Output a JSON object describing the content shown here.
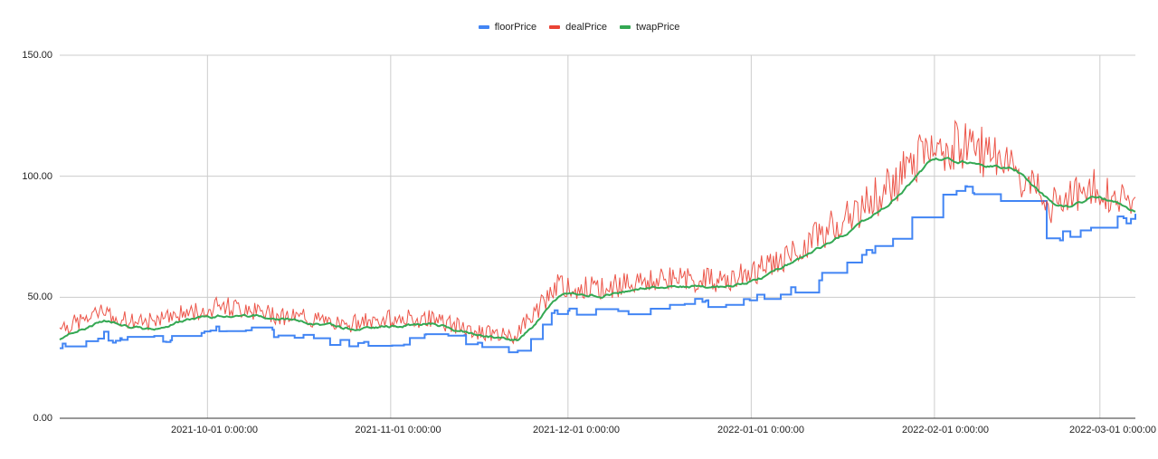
{
  "chart_data": {
    "type": "line",
    "title": "",
    "xlabel": "",
    "ylabel": "",
    "ylim": [
      0,
      150
    ],
    "y_ticks": [
      "0.00",
      "50.00",
      "100.00",
      "150.00"
    ],
    "x_ticks": [
      "2021-10-01 0:00:00",
      "2021-11-01 0:00:00",
      "2021-12-01 0:00:00",
      "2022-01-01 0:00:00",
      "2022-02-01 0:00:00",
      "2022-03-01 0:00:00"
    ],
    "x_range": [
      "2021-09-06",
      "2022-03-07"
    ],
    "grid": true,
    "legend_position": "top",
    "legend": [
      "floorPrice",
      "dealPrice",
      "twapPrice"
    ],
    "colors": {
      "floorPrice": "#4285f4",
      "dealPrice": "#ea4335",
      "twapPrice": "#34a853"
    },
    "x": [
      "2021-09-06",
      "2021-09-13",
      "2021-09-20",
      "2021-09-27",
      "2021-10-04",
      "2021-10-11",
      "2021-10-18",
      "2021-10-25",
      "2021-11-01",
      "2021-11-08",
      "2021-11-15",
      "2021-11-22",
      "2021-11-29",
      "2021-12-06",
      "2021-12-13",
      "2021-12-20",
      "2021-12-27",
      "2022-01-03",
      "2022-01-10",
      "2022-01-17",
      "2022-01-24",
      "2022-01-31",
      "2022-02-07",
      "2022-02-14",
      "2022-02-21",
      "2022-02-28",
      "2022-03-07"
    ],
    "series": [
      {
        "name": "floorPrice",
        "values": [
          29,
          34,
          31,
          35,
          37,
          36,
          33,
          31,
          30,
          35,
          32,
          28,
          44,
          44,
          45,
          47,
          48,
          50,
          55,
          64,
          73,
          88,
          95,
          86,
          74,
          80,
          83
        ]
      },
      {
        "name": "dealPrice",
        "values": [
          36,
          42,
          38,
          42,
          45,
          42,
          40,
          38,
          40,
          40,
          35,
          33,
          53,
          52,
          55,
          56,
          55,
          60,
          70,
          80,
          92,
          108,
          110,
          100,
          85,
          92,
          86
        ]
      },
      {
        "name": "twapPrice",
        "values": [
          34,
          41,
          36,
          41,
          43,
          42,
          39,
          37,
          38,
          39,
          34,
          32,
          52,
          51,
          54,
          55,
          54,
          59,
          68,
          78,
          90,
          108,
          105,
          103,
          86,
          92,
          84
        ]
      }
    ]
  },
  "legend": {
    "items": [
      {
        "label": "floorPrice",
        "color": "#4285f4"
      },
      {
        "label": "dealPrice",
        "color": "#ea4335"
      },
      {
        "label": "twapPrice",
        "color": "#34a853"
      }
    ]
  }
}
